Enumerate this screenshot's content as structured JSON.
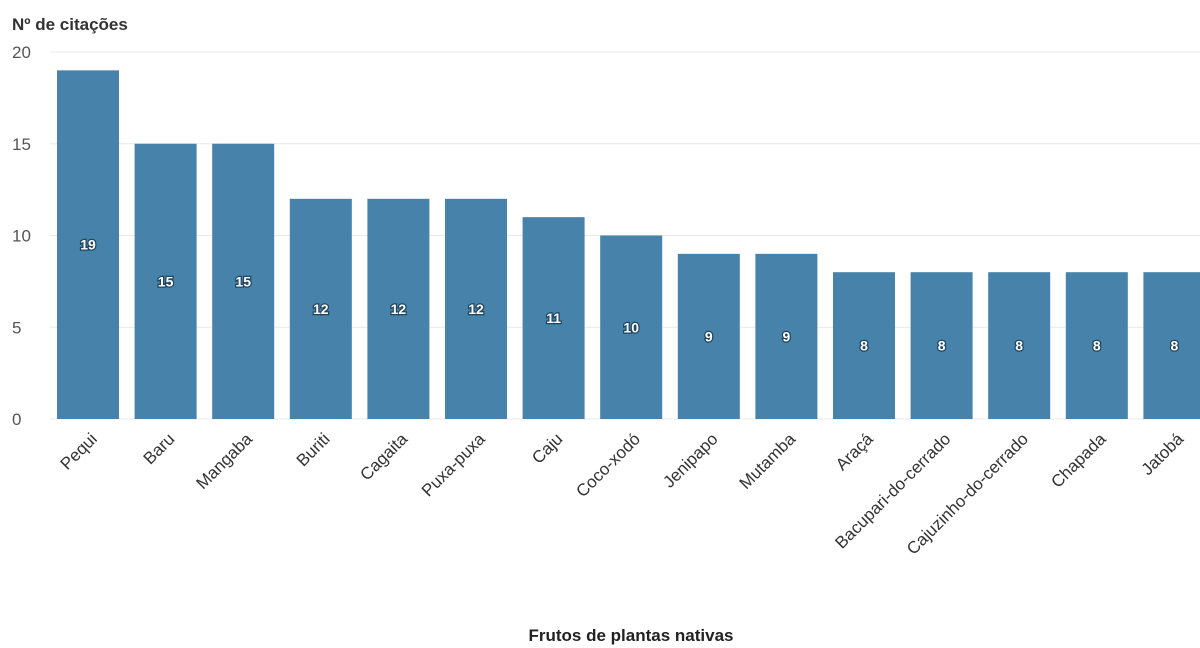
{
  "chart_data": {
    "type": "bar",
    "ylabel": "Nº de citações",
    "xlabel": "Frutos de plantas nativas",
    "categories": [
      "Pequi",
      "Baru",
      "Mangaba",
      "Buriti",
      "Cagaita",
      "Puxa-puxa",
      "Caju",
      "Coco-xodó",
      "Jenipapo",
      "Mutamba",
      "Araçá",
      "Bacupari-do-cerrado",
      "Cajuzinho-do-cerrado",
      "Chapada",
      "Jatobá"
    ],
    "values": [
      19,
      15,
      15,
      12,
      12,
      12,
      11,
      10,
      9,
      9,
      8,
      8,
      8,
      8,
      8
    ],
    "ylim": [
      0,
      20
    ],
    "yticks": [
      0,
      5,
      10,
      15,
      20
    ],
    "grid": true,
    "bar_color": "#4682a9",
    "data_labels": true
  }
}
